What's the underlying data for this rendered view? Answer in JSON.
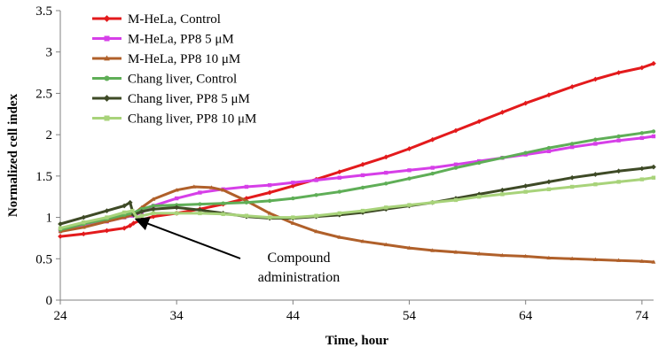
{
  "chart_data": {
    "type": "line",
    "title": "",
    "xlabel": "Time, hour",
    "ylabel": "Normalized cell index",
    "xlim": [
      24,
      75
    ],
    "ylim": [
      0,
      3.5
    ],
    "x_ticks": [
      24,
      34,
      44,
      54,
      64,
      74
    ],
    "y_ticks": [
      0,
      0.5,
      1,
      1.5,
      2,
      2.5,
      3,
      3.5
    ],
    "x_tick_labels": [
      "24",
      "34",
      "44",
      "54",
      "64",
      "74"
    ],
    "y_tick_labels": [
      "0",
      "0.5",
      "1",
      "1.5",
      "2",
      "2.5",
      "3",
      "3.5"
    ],
    "grid": false,
    "legend_position": "top-left",
    "annotation": {
      "lines": [
        "Compound",
        "administration"
      ],
      "points_to": [
        30.2,
        1.0
      ]
    },
    "series": [
      {
        "name": "M-HeLa, Control",
        "color": "#e31a1c",
        "marker": "diamond",
        "points": [
          [
            24,
            0.77
          ],
          [
            26,
            0.8
          ],
          [
            28,
            0.84
          ],
          [
            29.5,
            0.87
          ],
          [
            30,
            0.9
          ],
          [
            30.3,
            0.93
          ],
          [
            31,
            0.97
          ],
          [
            32,
            1.01
          ],
          [
            34,
            1.05
          ],
          [
            36,
            1.1
          ],
          [
            38,
            1.16
          ],
          [
            40,
            1.23
          ],
          [
            42,
            1.3
          ],
          [
            44,
            1.38
          ],
          [
            46,
            1.46
          ],
          [
            48,
            1.55
          ],
          [
            50,
            1.64
          ],
          [
            52,
            1.73
          ],
          [
            54,
            1.83
          ],
          [
            56,
            1.94
          ],
          [
            58,
            2.05
          ],
          [
            60,
            2.16
          ],
          [
            62,
            2.27
          ],
          [
            64,
            2.38
          ],
          [
            66,
            2.48
          ],
          [
            68,
            2.58
          ],
          [
            70,
            2.67
          ],
          [
            72,
            2.75
          ],
          [
            74,
            2.81
          ],
          [
            75,
            2.86
          ]
        ]
      },
      {
        "name": "M-HeLa, PP8 5 μM",
        "color": "#d63fe8",
        "marker": "square",
        "points": [
          [
            24,
            0.85
          ],
          [
            26,
            0.9
          ],
          [
            28,
            0.95
          ],
          [
            29.5,
            1.0
          ],
          [
            30.2,
            1.02
          ],
          [
            31,
            1.06
          ],
          [
            32,
            1.14
          ],
          [
            34,
            1.23
          ],
          [
            36,
            1.3
          ],
          [
            38,
            1.34
          ],
          [
            40,
            1.37
          ],
          [
            42,
            1.39
          ],
          [
            44,
            1.42
          ],
          [
            46,
            1.45
          ],
          [
            48,
            1.48
          ],
          [
            50,
            1.51
          ],
          [
            52,
            1.54
          ],
          [
            54,
            1.57
          ],
          [
            56,
            1.6
          ],
          [
            58,
            1.64
          ],
          [
            60,
            1.68
          ],
          [
            62,
            1.72
          ],
          [
            64,
            1.76
          ],
          [
            66,
            1.8
          ],
          [
            68,
            1.85
          ],
          [
            70,
            1.89
          ],
          [
            72,
            1.93
          ],
          [
            74,
            1.96
          ],
          [
            75,
            1.98
          ]
        ]
      },
      {
        "name": "M-HeLa, PP8 10 μM",
        "color": "#b0602a",
        "marker": "triangle",
        "points": [
          [
            24,
            0.83
          ],
          [
            26,
            0.88
          ],
          [
            28,
            0.95
          ],
          [
            29.5,
            1.0
          ],
          [
            30.2,
            1.03
          ],
          [
            31,
            1.12
          ],
          [
            32,
            1.22
          ],
          [
            34,
            1.33
          ],
          [
            35.5,
            1.37
          ],
          [
            37,
            1.36
          ],
          [
            38,
            1.33
          ],
          [
            40,
            1.2
          ],
          [
            42,
            1.05
          ],
          [
            44,
            0.93
          ],
          [
            46,
            0.83
          ],
          [
            48,
            0.76
          ],
          [
            50,
            0.71
          ],
          [
            52,
            0.67
          ],
          [
            54,
            0.63
          ],
          [
            56,
            0.6
          ],
          [
            58,
            0.58
          ],
          [
            60,
            0.56
          ],
          [
            62,
            0.54
          ],
          [
            64,
            0.53
          ],
          [
            66,
            0.51
          ],
          [
            68,
            0.5
          ],
          [
            70,
            0.49
          ],
          [
            72,
            0.48
          ],
          [
            74,
            0.47
          ],
          [
            75,
            0.46
          ]
        ]
      },
      {
        "name": "Chang liver, Control",
        "color": "#5fae57",
        "marker": "circle",
        "points": [
          [
            24,
            0.85
          ],
          [
            26,
            0.92
          ],
          [
            28,
            0.98
          ],
          [
            29.5,
            1.03
          ],
          [
            30.2,
            1.05
          ],
          [
            31,
            1.1
          ],
          [
            32,
            1.14
          ],
          [
            34,
            1.15
          ],
          [
            36,
            1.16
          ],
          [
            38,
            1.17
          ],
          [
            40,
            1.18
          ],
          [
            42,
            1.2
          ],
          [
            44,
            1.23
          ],
          [
            46,
            1.27
          ],
          [
            48,
            1.31
          ],
          [
            50,
            1.36
          ],
          [
            52,
            1.41
          ],
          [
            54,
            1.47
          ],
          [
            56,
            1.53
          ],
          [
            58,
            1.6
          ],
          [
            60,
            1.66
          ],
          [
            62,
            1.72
          ],
          [
            64,
            1.78
          ],
          [
            66,
            1.84
          ],
          [
            68,
            1.89
          ],
          [
            70,
            1.94
          ],
          [
            72,
            1.98
          ],
          [
            74,
            2.02
          ],
          [
            75,
            2.04
          ]
        ]
      },
      {
        "name": "Chang liver, PP8 5 μM",
        "color": "#3e4a26",
        "marker": "diamond",
        "points": [
          [
            24,
            0.92
          ],
          [
            26,
            1.0
          ],
          [
            28,
            1.08
          ],
          [
            29.5,
            1.14
          ],
          [
            30,
            1.18
          ],
          [
            30.3,
            1.03
          ],
          [
            31,
            1.07
          ],
          [
            32,
            1.1
          ],
          [
            34,
            1.12
          ],
          [
            36,
            1.09
          ],
          [
            38,
            1.05
          ],
          [
            40,
            1.01
          ],
          [
            42,
            0.99
          ],
          [
            44,
            0.99
          ],
          [
            46,
            1.01
          ],
          [
            48,
            1.03
          ],
          [
            50,
            1.06
          ],
          [
            52,
            1.1
          ],
          [
            54,
            1.14
          ],
          [
            56,
            1.18
          ],
          [
            58,
            1.23
          ],
          [
            60,
            1.28
          ],
          [
            62,
            1.33
          ],
          [
            64,
            1.38
          ],
          [
            66,
            1.43
          ],
          [
            68,
            1.48
          ],
          [
            70,
            1.52
          ],
          [
            72,
            1.56
          ],
          [
            74,
            1.59
          ],
          [
            75,
            1.61
          ]
        ]
      },
      {
        "name": "Chang liver, PP8 10 μM",
        "color": "#a8d37a",
        "marker": "square",
        "points": [
          [
            24,
            0.87
          ],
          [
            26,
            0.94
          ],
          [
            28,
            1.0
          ],
          [
            29.5,
            1.06
          ],
          [
            30.2,
            1.08
          ],
          [
            30.6,
            1.0
          ],
          [
            31,
            1.02
          ],
          [
            32,
            1.05
          ],
          [
            34,
            1.05
          ],
          [
            36,
            1.05
          ],
          [
            38,
            1.04
          ],
          [
            40,
            1.02
          ],
          [
            42,
            1.0
          ],
          [
            44,
            1.0
          ],
          [
            46,
            1.02
          ],
          [
            48,
            1.05
          ],
          [
            50,
            1.08
          ],
          [
            52,
            1.12
          ],
          [
            54,
            1.15
          ],
          [
            56,
            1.18
          ],
          [
            58,
            1.21
          ],
          [
            60,
            1.25
          ],
          [
            62,
            1.28
          ],
          [
            64,
            1.31
          ],
          [
            66,
            1.34
          ],
          [
            68,
            1.37
          ],
          [
            70,
            1.4
          ],
          [
            72,
            1.43
          ],
          [
            74,
            1.46
          ],
          [
            75,
            1.48
          ]
        ]
      }
    ]
  }
}
